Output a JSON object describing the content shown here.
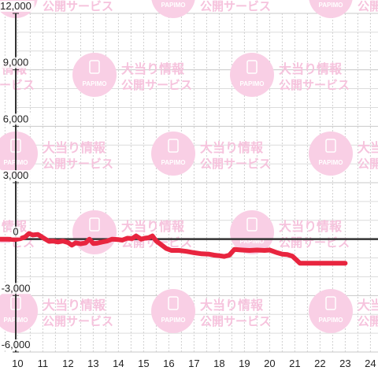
{
  "watermark": {
    "line1": "大当り情報",
    "line2": "公開サービス",
    "brand": "PAPIMO"
  },
  "chart_data": {
    "type": "line",
    "title": "",
    "xlabel": "",
    "ylabel": "",
    "xlim": [
      9.3,
      24.3
    ],
    "ylim": [
      -6000,
      12000
    ],
    "x_ticks": [
      10,
      11,
      12,
      13,
      14,
      15,
      16,
      17,
      18,
      19,
      20,
      21,
      22,
      23,
      24
    ],
    "y_ticks": [
      -6000,
      -3000,
      0,
      3000,
      6000,
      9000,
      12000
    ],
    "y_tick_labels": [
      "-6,000",
      "-3,000",
      "0",
      "3,000",
      "6,000",
      "9,000",
      "12,000"
    ],
    "grid": true,
    "legend": "none",
    "line_color": "#e8253f",
    "series": [
      {
        "x": [
          9.3,
          9.6,
          9.9,
          10.1,
          10.3,
          10.45,
          10.6,
          10.8,
          10.95,
          11.1,
          11.25,
          11.4,
          11.6,
          11.8,
          12.0,
          12.15,
          12.3,
          12.5,
          12.7,
          12.85,
          13.0,
          13.15,
          13.35,
          13.55,
          13.75,
          13.95,
          14.15,
          14.35,
          14.55,
          14.7,
          14.9,
          15.05,
          15.2,
          15.35,
          15.5,
          15.7,
          15.9,
          16.1,
          16.4,
          16.7,
          17.0,
          17.3,
          17.6,
          17.8,
          18.0,
          18.2,
          18.4,
          18.6,
          18.9,
          19.2,
          19.5,
          19.8,
          20.0,
          20.3,
          20.5,
          20.7,
          20.9,
          21.2,
          21.6,
          22.0,
          22.4,
          22.8,
          23.0
        ],
        "y": [
          0,
          0,
          -20,
          20,
          120,
          300,
          220,
          250,
          130,
          0,
          -120,
          -100,
          -150,
          -100,
          -180,
          -320,
          -200,
          -250,
          -200,
          0,
          -230,
          -220,
          -150,
          -100,
          0,
          -20,
          -50,
          50,
          30,
          170,
          0,
          50,
          80,
          170,
          -100,
          -300,
          -500,
          -600,
          -600,
          -650,
          -720,
          -780,
          -800,
          -850,
          -880,
          -920,
          -850,
          -550,
          -580,
          -600,
          -580,
          -600,
          -580,
          -720,
          -800,
          -820,
          -900,
          -1280,
          -1280,
          -1280,
          -1280,
          -1280,
          -1280
        ]
      }
    ]
  }
}
